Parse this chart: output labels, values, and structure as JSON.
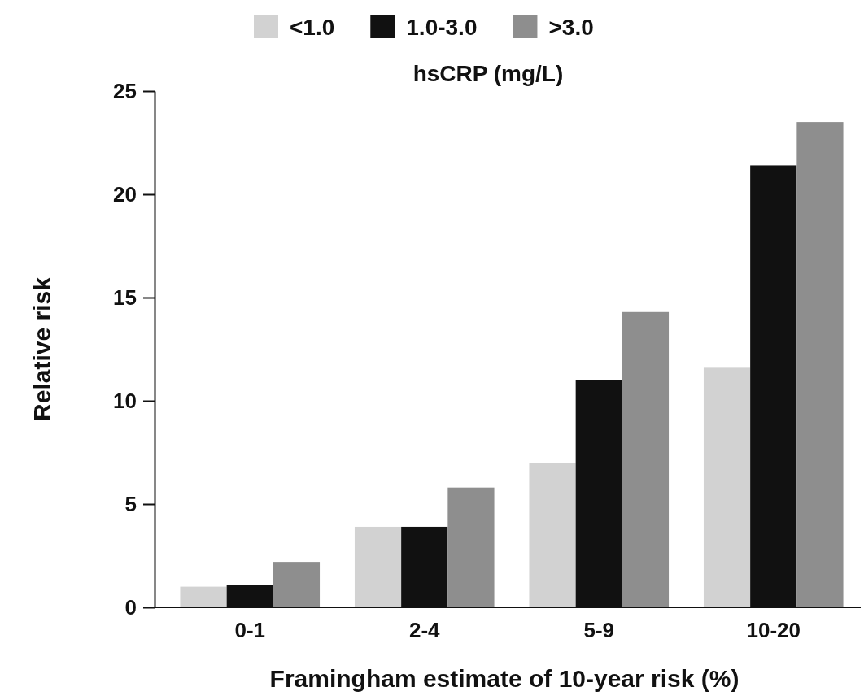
{
  "chart_data": {
    "type": "bar",
    "xlabel": "Framingham estimate of 10-year risk (%)",
    "ylabel": "Relative risk",
    "legend_title": "hsCRP (mg/L)",
    "categories": [
      "0-1",
      "2-4",
      "5-9",
      "10-20"
    ],
    "series": [
      {
        "name": "<1.0",
        "color": "#d2d2d2",
        "values": [
          1.0,
          3.9,
          7.0,
          11.6
        ]
      },
      {
        "name": "1.0-3.0",
        "color": "#111111",
        "values": [
          1.1,
          3.9,
          11.0,
          21.4
        ]
      },
      {
        "name": ">3.0",
        "color": "#8e8e8e",
        "values": [
          2.2,
          5.8,
          14.3,
          23.5
        ]
      }
    ],
    "ylim": [
      0,
      25
    ],
    "yticks": [
      0,
      5,
      10,
      15,
      20,
      25
    ],
    "grid": false,
    "legend": "top"
  }
}
